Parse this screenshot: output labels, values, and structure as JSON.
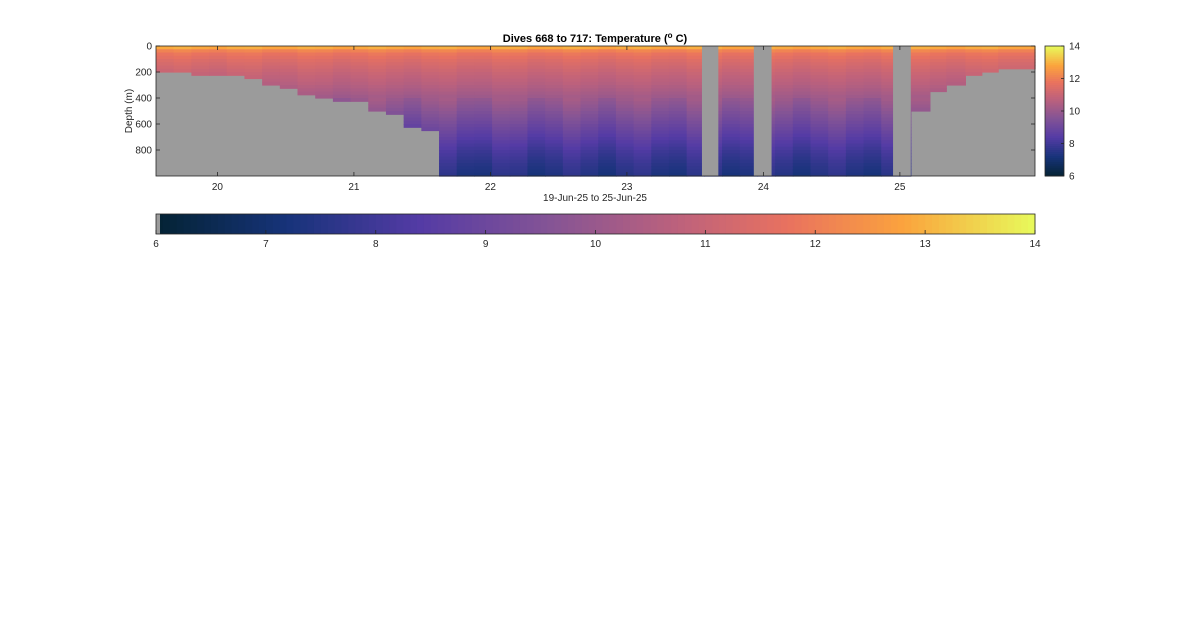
{
  "chart_data": {
    "type": "heatmap",
    "title": "Dives 668 to 717: Temperature (",
    "title_superscript": "o",
    "title_suffix": " C)",
    "xlabel": "19-Jun-25 to 25-Jun-25",
    "ylabel": "Depth (m)",
    "x_ticks": [
      "20",
      "21",
      "22",
      "23",
      "24",
      "25"
    ],
    "x_tick_values": [
      20,
      21,
      22,
      23,
      24,
      25
    ],
    "xlim": [
      19.55,
      25.99
    ],
    "y_ticks": [
      "0",
      "200",
      "400",
      "600",
      "800"
    ],
    "y_tick_values": [
      0,
      200,
      400,
      600,
      800
    ],
    "ylim": [
      0,
      1000
    ],
    "y_reversed": true,
    "colorbar_ticks": [
      "6",
      "8",
      "10",
      "12",
      "14"
    ],
    "colorbar_tick_values": [
      6,
      8,
      10,
      12,
      14
    ],
    "clim": [
      6,
      14
    ],
    "colormap": "thermal",
    "missing_color": "#9b9b9b",
    "dive_start_day": 19.55,
    "dive_spacing_day": 0.1296,
    "dive_max_depth_m": [
      200,
      200,
      205,
      210,
      215,
      250,
      280,
      320,
      360,
      400,
      410,
      420,
      480,
      520,
      620,
      630,
      1000,
      1000,
      1000,
      1000,
      1000,
      1000,
      1000,
      1000,
      1000,
      1000,
      1000,
      1000,
      1000,
      1000,
      1000,
      1000,
      1000,
      1000,
      1000,
      1000,
      1000,
      1000,
      1000,
      1000,
      1000,
      1000,
      1000,
      1000,
      1000,
      1000,
      1000,
      1000,
      1000,
      1000
    ],
    "gaps_day": [
      [
        23.55,
        23.67
      ],
      [
        23.93,
        24.06
      ],
      [
        24.95,
        25.08
      ]
    ],
    "post_gap_profile_day": [
      25.08,
      25.22,
      25.34,
      25.48,
      25.6,
      25.72,
      25.99
    ],
    "post_gap_depth_m": [
      1000,
      500,
      330,
      280,
      210,
      185,
      175
    ],
    "temperature_profile": {
      "depth_m": [
        0,
        10,
        25,
        60,
        120,
        200,
        300,
        400,
        500,
        600,
        700,
        800,
        900,
        1000
      ],
      "temp_c": [
        13.8,
        13.0,
        12.3,
        11.8,
        11.4,
        11.0,
        10.6,
        10.1,
        9.6,
        9.1,
        8.6,
        8.1,
        7.7,
        7.4
      ]
    }
  },
  "colorbar_horizontal": {
    "ticks": [
      "6",
      "7",
      "8",
      "9",
      "10",
      "11",
      "12",
      "13",
      "14"
    ],
    "tick_values": [
      6,
      7,
      8,
      9,
      10,
      11,
      12,
      13,
      14
    ]
  }
}
